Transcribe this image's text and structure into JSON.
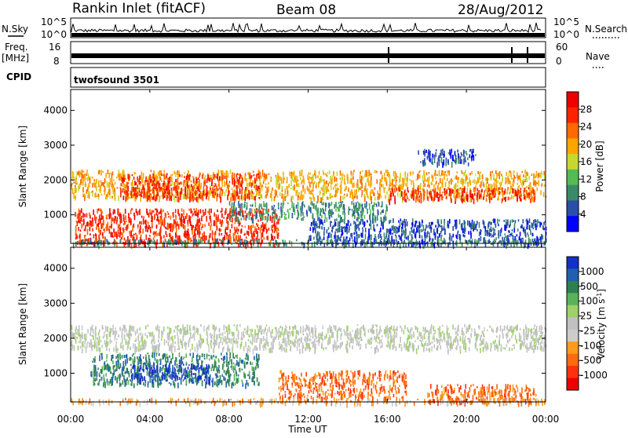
{
  "header": {
    "station": "Rankin Inlet (fitACF)",
    "beam": "Beam 08",
    "date": "28/Aug/2012"
  },
  "params": {
    "nsky_label": "N.Sky",
    "nsearch_label": "N.Search",
    "freq_label_top": "Freq.",
    "freq_label_unit": "[MHz]",
    "nave_label": "Nave",
    "cpid_label": "CPID",
    "cpid_value": "twofsound 3501",
    "noise_ticks_left": [
      "10^5",
      "10^0"
    ],
    "noise_ticks_right": [
      "10^5",
      "10^0"
    ],
    "freq_ticks": [
      "16",
      "8"
    ],
    "nave_ticks": [
      "60",
      "0"
    ]
  },
  "colors": {
    "power": [
      "#0000ff",
      "#2a4fa8",
      "#3a8a6a",
      "#55bb55",
      "#c6d830",
      "#ffa400",
      "#ff6a00",
      "#ff2200",
      "#ee0000"
    ],
    "velocity": [
      "#1530c8",
      "#2060b0",
      "#2f7f55",
      "#5ab35a",
      "#9fd16a",
      "#c0c0c0",
      "#cccccc",
      "#ff9a1a",
      "#ff6a10",
      "#ff3010",
      "#ee0000"
    ],
    "gray": "#c8c8c8"
  },
  "chart_data": [
    {
      "type": "heatmap",
      "name": "power",
      "xlabel": "Time UT",
      "ylabel": "Slant Range [km]",
      "x_ticks": [
        "00:00",
        "04:00",
        "08:00",
        "12:00",
        "16:00",
        "20:00",
        "00:00"
      ],
      "xlim_hours": [
        0,
        24
      ],
      "ylim_km": [
        180,
        4600
      ],
      "y_ticks": [
        1000,
        2000,
        3000,
        4000
      ],
      "colorbar_label": "Power [dB]",
      "colorbar_ticks": [
        "4",
        "8",
        "12",
        "16",
        "20",
        "24",
        "28"
      ],
      "regions": [
        {
          "t0": 0.0,
          "t1": 24.0,
          "r0": 1500,
          "r1": 2300,
          "level": 5
        },
        {
          "t0": 0.2,
          "t1": 10.5,
          "r0": 180,
          "r1": 1200,
          "level": 7
        },
        {
          "t0": 2.5,
          "t1": 9.5,
          "r0": 1500,
          "r1": 2200,
          "level": 7
        },
        {
          "t0": 16.0,
          "t1": 23.5,
          "r0": 1450,
          "r1": 1800,
          "level": 7
        },
        {
          "t0": 8.0,
          "t1": 16.0,
          "r0": 900,
          "r1": 1400,
          "level": 2
        },
        {
          "t0": 12.0,
          "t1": 24.0,
          "r0": 180,
          "r1": 900,
          "level": 1
        },
        {
          "t0": 17.5,
          "t1": 20.5,
          "r0": 2500,
          "r1": 2900,
          "level": 1
        },
        {
          "t0": 0.0,
          "t1": 24.0,
          "r0": 180,
          "r1": 320,
          "level": 2
        }
      ]
    },
    {
      "type": "heatmap",
      "name": "velocity",
      "xlabel": "Time UT",
      "ylabel": "Slant Range [km]",
      "x_ticks": [
        "00:00",
        "04:00",
        "08:00",
        "12:00",
        "16:00",
        "20:00",
        "00:00"
      ],
      "xlim_hours": [
        0,
        24
      ],
      "ylim_km": [
        180,
        4600
      ],
      "y_ticks": [
        1000,
        2000,
        3000,
        4000
      ],
      "colorbar_label": "Velocity [m s^-1]",
      "colorbar_ticks": [
        "1000",
        "500",
        "100",
        "25",
        "-25",
        "-100",
        "-500",
        "-1000"
      ],
      "regions": [
        {
          "t0": 0.0,
          "t1": 24.0,
          "r0": 1700,
          "r1": 2400,
          "level": 5
        },
        {
          "t0": 1.0,
          "t1": 9.5,
          "r0": 700,
          "r1": 1600,
          "level": 2
        },
        {
          "t0": 3.0,
          "t1": 7.0,
          "r0": 800,
          "r1": 1300,
          "level": 0
        },
        {
          "t0": 10.5,
          "t1": 17.0,
          "r0": 300,
          "r1": 1100,
          "level": 8
        },
        {
          "t0": 18.0,
          "t1": 23.5,
          "r0": 200,
          "r1": 700,
          "level": 8
        },
        {
          "t0": 0.0,
          "t1": 24.0,
          "r0": 180,
          "r1": 300,
          "level": 7
        }
      ]
    }
  ]
}
